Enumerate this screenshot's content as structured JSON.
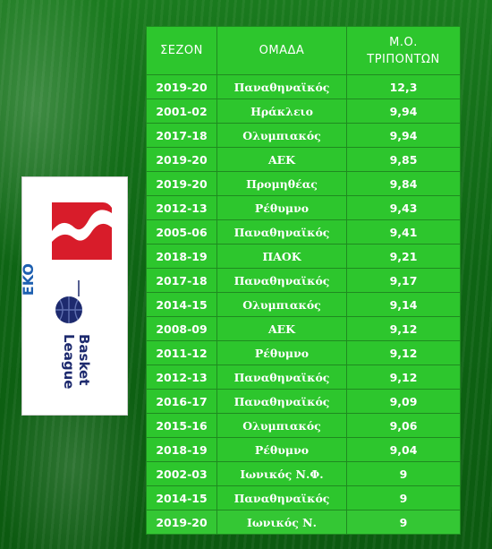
{
  "table": {
    "headers": {
      "season": "ΣΕΖΟΝ",
      "team": "ΟΜΑΔΑ",
      "avg_line1": "Μ.Ο.",
      "avg_line2": "ΤΡΙΠΟΝΤΩΝ"
    },
    "rows": [
      {
        "season": "2019-20",
        "team": "Παναθηναϊκός",
        "avg": "12,3"
      },
      {
        "season": "2001-02",
        "team": "Ηράκλειο",
        "avg": "9,94"
      },
      {
        "season": "2017-18",
        "team": "Ολυμπιακός",
        "avg": "9,94"
      },
      {
        "season": "2019-20",
        "team": "ΑΕΚ",
        "avg": "9,85"
      },
      {
        "season": "2019-20",
        "team": "Προμηθέας",
        "avg": "9,84"
      },
      {
        "season": "2012-13",
        "team": "Ρέθυμνο",
        "avg": "9,43"
      },
      {
        "season": "2005-06",
        "team": "Παναθηναϊκός",
        "avg": "9,41"
      },
      {
        "season": "2018-19",
        "team": "ΠΑΟΚ",
        "avg": "9,21"
      },
      {
        "season": "2017-18",
        "team": "Παναθηναϊκός",
        "avg": "9,17"
      },
      {
        "season": "2014-15",
        "team": "Ολυμπιακός",
        "avg": "9,14"
      },
      {
        "season": "2008-09",
        "team": "ΑΕΚ",
        "avg": "9,12"
      },
      {
        "season": "2011-12",
        "team": "Ρέθυμνο",
        "avg": "9,12"
      },
      {
        "season": "2012-13",
        "team": "Παναθηναϊκός",
        "avg": "9,12"
      },
      {
        "season": "2016-17",
        "team": "Παναθηναϊκός",
        "avg": "9,09"
      },
      {
        "season": "2015-16",
        "team": "Ολυμπιακός",
        "avg": "9,06"
      },
      {
        "season": "2018-19",
        "team": "Ρέθυμνο",
        "avg": "9,04"
      },
      {
        "season": "2002-03",
        "team": "Ιωνικός Ν.Φ.",
        "avg": "9"
      },
      {
        "season": "2014-15",
        "team": "Παναθηναϊκός",
        "avg": "9"
      },
      {
        "season": "2019-20",
        "team": "Ιωνικός Ν.",
        "avg": "9"
      }
    ]
  },
  "logo": {
    "sponsor_text": "EKO",
    "league_line1": "Basket",
    "league_line2": "League",
    "sponsor_color": "#d81c2a",
    "league_color": "#1d2a6e"
  },
  "colors": {
    "table_cell": "#2dc62d",
    "background": "#0d5e12"
  }
}
